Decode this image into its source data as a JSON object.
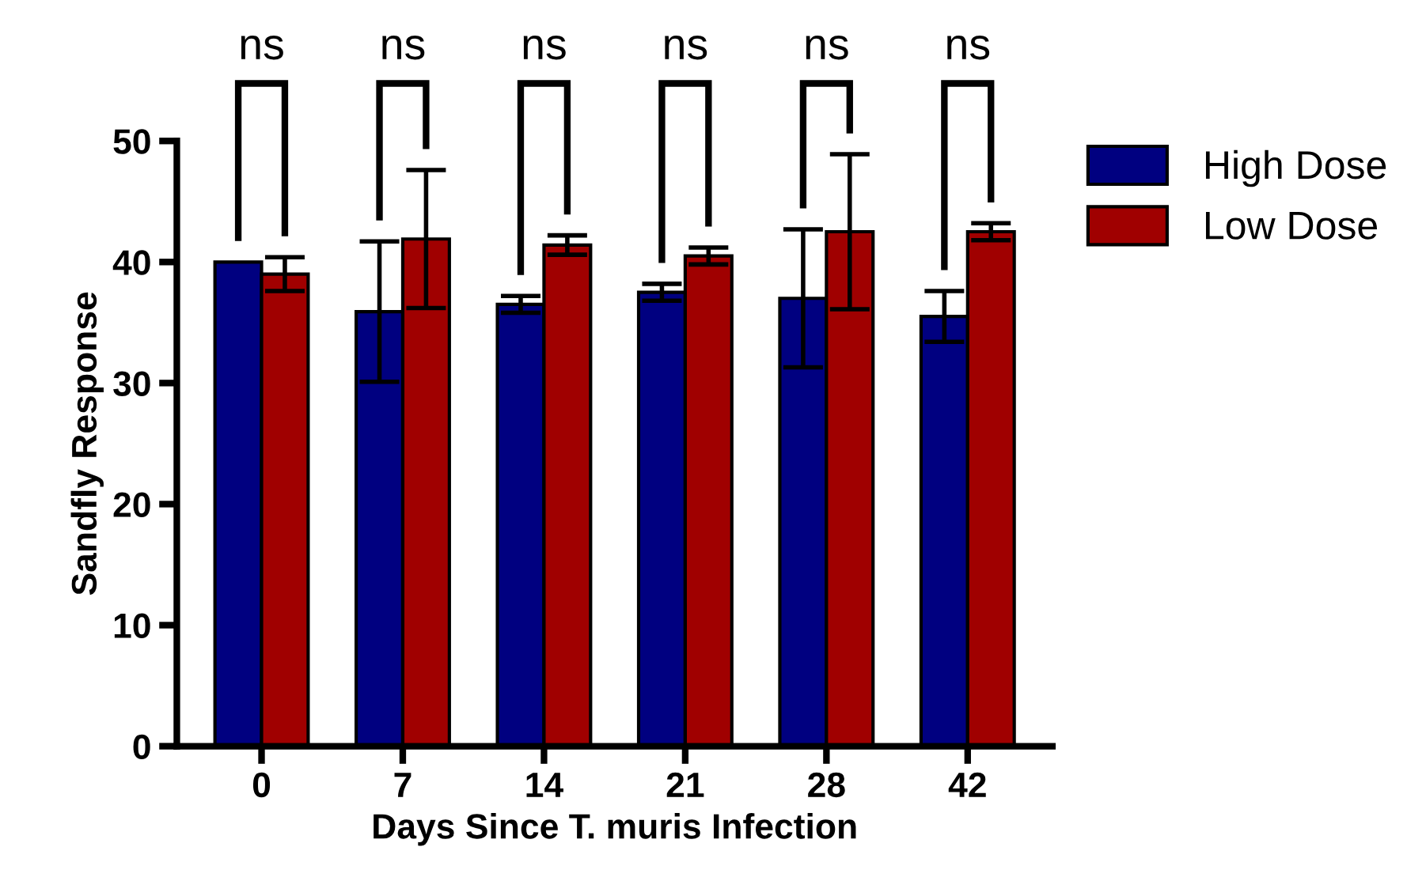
{
  "chart_data": {
    "type": "bar",
    "xlabel": "Days Since T. muris Infection",
    "ylabel": "Sandfly Response",
    "categories": [
      "0",
      "7",
      "14",
      "21",
      "28",
      "42"
    ],
    "series": [
      {
        "name": "High Dose",
        "color": "#000080",
        "values": [
          40,
          35.9,
          36.5,
          37.5,
          37,
          35.5
        ],
        "errors": [
          null,
          5.8,
          0.7,
          0.7,
          5.7,
          2.1
        ]
      },
      {
        "name": "Low Dose",
        "color": "#a00000",
        "values": [
          39,
          41.9,
          41.4,
          40.5,
          42.5,
          42.5
        ],
        "errors": [
          1.4,
          5.7,
          0.8,
          0.7,
          6.4,
          0.7
        ]
      }
    ],
    "ylim": [
      0,
      50
    ],
    "yticks": [
      0,
      10,
      20,
      30,
      40,
      50
    ],
    "grid": false,
    "legend": "top right",
    "annotations": [
      "ns",
      "ns",
      "ns",
      "ns",
      "ns",
      "ns"
    ]
  }
}
